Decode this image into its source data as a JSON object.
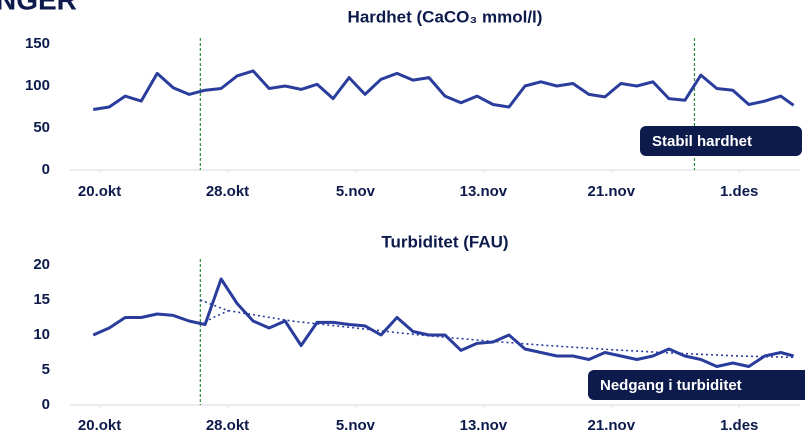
{
  "header": "NGER",
  "chart_data": [
    {
      "type": "line",
      "title": "Hardhet (CaCO₃ mmol/l)",
      "xlim": [
        -0.6,
        43.8
      ],
      "xticks": [
        {
          "value": 0,
          "label": "20.okt"
        },
        {
          "value": 8,
          "label": "28.okt"
        },
        {
          "value": 16,
          "label": "5.nov"
        },
        {
          "value": 24,
          "label": "13.nov"
        },
        {
          "value": 32,
          "label": "21.nov"
        },
        {
          "value": 40,
          "label": "1.des"
        }
      ],
      "ylim": [
        0,
        150
      ],
      "yticks": [
        0,
        50,
        100,
        150
      ],
      "vlines": [
        6.3,
        37.2
      ],
      "vline_color": "#2e8b3a",
      "annotation": "Stabil hardhet",
      "series": [
        {
          "color": "#2a3d9c",
          "style": "solid",
          "x": [
            -0.4,
            0.6,
            1.6,
            2.6,
            3.6,
            4.6,
            5.6,
            6.6,
            7.6,
            8.6,
            9.6,
            10.6,
            11.6,
            12.6,
            13.6,
            14.6,
            15.6,
            16.6,
            17.6,
            18.6,
            19.6,
            20.6,
            21.6,
            22.6,
            23.6,
            24.6,
            25.6,
            26.6,
            27.6,
            28.6,
            29.6,
            30.6,
            31.6,
            32.6,
            33.6,
            34.6,
            35.6,
            36.6,
            37.6,
            38.6,
            39.6,
            40.6,
            41.6,
            42.6,
            43.4
          ],
          "values": [
            72,
            75,
            88,
            82,
            115,
            98,
            90,
            95,
            97,
            112,
            118,
            97,
            100,
            96,
            102,
            85,
            110,
            90,
            108,
            115,
            107,
            110,
            88,
            80,
            88,
            78,
            75,
            100,
            105,
            100,
            103,
            90,
            87,
            103,
            100,
            105,
            85,
            83,
            113,
            97,
            95,
            78,
            82,
            88,
            77
          ]
        }
      ]
    },
    {
      "type": "line",
      "title": "Turbiditet (FAU)",
      "xlim": [
        -0.6,
        43.8
      ],
      "xticks": [
        {
          "value": 0,
          "label": "20.okt"
        },
        {
          "value": 8,
          "label": "28.okt"
        },
        {
          "value": 16,
          "label": "5.nov"
        },
        {
          "value": 24,
          "label": "13.nov"
        },
        {
          "value": 32,
          "label": "21.nov"
        },
        {
          "value": 40,
          "label": "1.des"
        }
      ],
      "ylim": [
        0,
        20
      ],
      "yticks": [
        0,
        5,
        10,
        15,
        20
      ],
      "vlines": [
        6.3
      ],
      "vline_color": "#2e8b3a",
      "annotation": "Nedgang i turbiditet",
      "series": [
        {
          "color": "#2a3d9c",
          "style": "solid",
          "x": [
            -0.4,
            0.6,
            1.6,
            2.6,
            3.6,
            4.6,
            5.6,
            6.6,
            7.6,
            8.6,
            9.6,
            10.6,
            11.6,
            12.6,
            13.6,
            14.6,
            15.6,
            16.6,
            17.6,
            18.6,
            19.6,
            20.6,
            21.6,
            22.6,
            23.6,
            24.6,
            25.6,
            26.6,
            27.6,
            28.6,
            29.6,
            30.6,
            31.6,
            32.6,
            33.6,
            34.6,
            35.6,
            36.6,
            37.6,
            38.6,
            39.6,
            40.6,
            41.6,
            42.6,
            43.4
          ],
          "values": [
            10,
            11,
            12.5,
            12.5,
            13,
            12.8,
            12,
            11.5,
            18,
            14.5,
            12,
            11,
            12,
            8.5,
            11.8,
            11.8,
            11.5,
            11.3,
            10,
            12.5,
            10.5,
            10,
            10,
            7.8,
            8.8,
            9,
            10,
            8,
            7.5,
            7,
            7,
            6.5,
            7.5,
            7,
            6.5,
            7,
            8,
            7,
            6.5,
            5.5,
            6,
            5.5,
            7,
            7.5,
            7
          ]
        },
        {
          "color": "#2a3d9c",
          "style": "dotted",
          "x": [
            6.3,
            8,
            12,
            16,
            20,
            24,
            28,
            32,
            36,
            40,
            43.4
          ],
          "values": [
            15,
            13.5,
            12,
            11,
            10,
            9.2,
            8.5,
            7.9,
            7.4,
            7,
            6.8
          ]
        },
        {
          "color": "#2a3d9c",
          "style": "dotted",
          "x": [
            6.3,
            7.2,
            8.2
          ],
          "values": [
            11.5,
            12.6,
            13.6
          ]
        }
      ]
    }
  ]
}
